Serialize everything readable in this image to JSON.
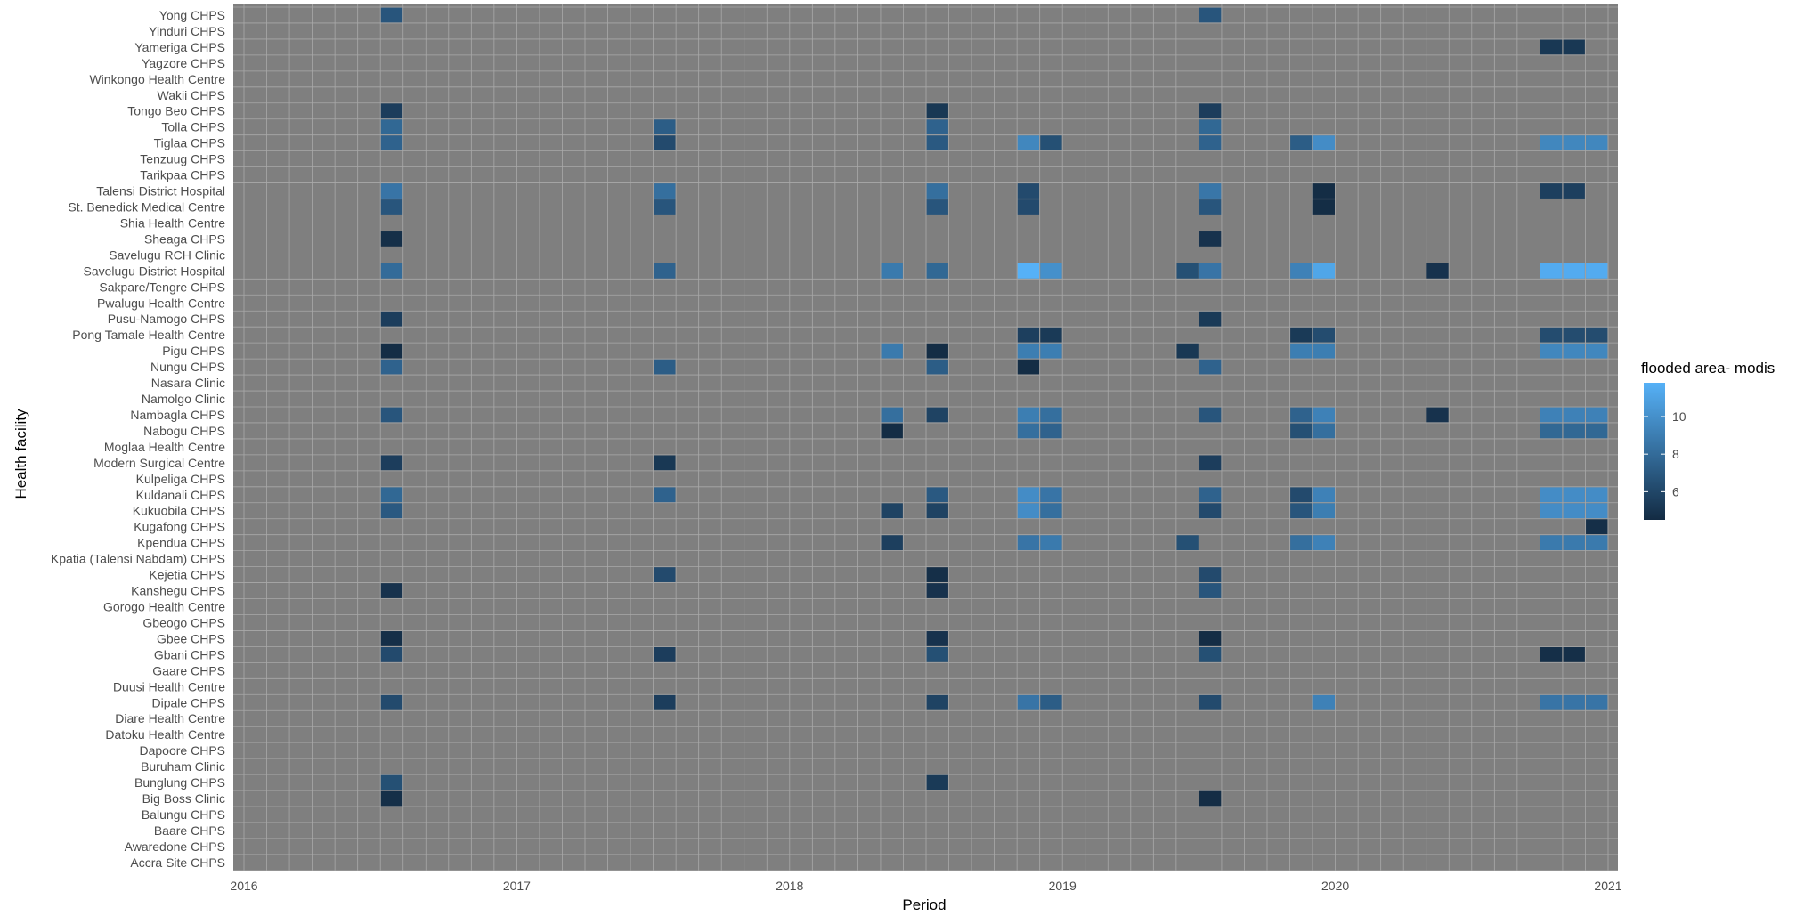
{
  "chart_data": {
    "type": "heatmap",
    "xlabel": "Period",
    "ylabel": "Health facility",
    "xlim": [
      2016.0,
      2021.0
    ],
    "x_ticks": [
      2016,
      2017,
      2018,
      2019,
      2020,
      2021
    ],
    "x_tick_labels": [
      "2016",
      "2017",
      "2018",
      "2019",
      "2020",
      "2021"
    ],
    "legend": {
      "title": "flooded area- modis",
      "ticks": [
        6,
        8,
        10
      ],
      "tick_labels": [
        "6",
        "8",
        "10"
      ],
      "range": [
        4.5,
        11.8
      ],
      "low_color": "#132B43",
      "high_color": "#56B1F7"
    },
    "panel_color": "#7f7f7f",
    "grid_color": "#a9a9a9",
    "facilities": [
      "Yong CHPS",
      "Yinduri CHPS",
      "Yameriga CHPS",
      "Yagzore CHPS",
      "Winkongo Health Centre",
      "Wakii CHPS",
      "Tongo Beo CHPS",
      "Tolla CHPS",
      "Tiglaa CHPS",
      "Tenzuug CHPS",
      "Tarikpaa CHPS",
      "Talensi District Hospital",
      "St. Benedick Medical Centre",
      "Shia Health Centre",
      "Sheaga CHPS",
      "Savelugu RCH Clinic",
      "Savelugu District Hospital",
      "Sakpare/Tengre CHPS",
      "Pwalugu Health Centre",
      "Pusu-Namogo CHPS",
      "Pong Tamale Health Centre",
      "Pigu CHPS",
      "Nungu CHPS",
      "Nasara Clinic",
      "Namolgo Clinic",
      "Nambagla CHPS",
      "Nabogu CHPS",
      "Moglaa Health Centre",
      "Modern Surgical Centre",
      "Kulpeliga CHPS",
      "Kuldanali CHPS",
      "Kukuobila CHPS",
      "Kugafong CHPS",
      "Kpendua CHPS",
      "Kpatia (Talensi Nabdam) CHPS",
      "Kejetia CHPS",
      "Kanshegu CHPS",
      "Gorogo Health Centre",
      "Gbeogo CHPS",
      "Gbee CHPS",
      "Gbani CHPS",
      "Gaare CHPS",
      "Duusi Health Centre",
      "Dipale CHPS",
      "Diare Health Centre",
      "Datoku Health Centre",
      "Dapoore CHPS",
      "Buruham Clinic",
      "Bunglung CHPS",
      "Big Boss Clinic",
      "Balungu CHPS",
      "Baare CHPS",
      "Awaredone CHPS",
      "Accra Site CHPS"
    ],
    "cells": [
      [
        "Yong CHPS",
        "2016-07",
        6.8
      ],
      [
        "Yong CHPS",
        "2019-07",
        6.8
      ],
      [
        "Yameriga CHPS",
        "2020-10",
        5.2
      ],
      [
        "Yameriga CHPS",
        "2020-11",
        5.2
      ],
      [
        "Tongo Beo CHPS",
        "2016-07",
        5.5
      ],
      [
        "Tongo Beo CHPS",
        "2018-07",
        5.2
      ],
      [
        "Tongo Beo CHPS",
        "2019-07",
        5.5
      ],
      [
        "Tolla CHPS",
        "2016-07",
        7.8
      ],
      [
        "Tolla CHPS",
        "2017-07",
        7.2
      ],
      [
        "Tolla CHPS",
        "2018-07",
        7.5
      ],
      [
        "Tolla CHPS",
        "2019-07",
        7.8
      ],
      [
        "Tiglaa CHPS",
        "2016-07",
        7.5
      ],
      [
        "Tiglaa CHPS",
        "2017-07",
        6.2
      ],
      [
        "Tiglaa CHPS",
        "2018-07",
        7.0
      ],
      [
        "Tiglaa CHPS",
        "2018-11",
        9.5
      ],
      [
        "Tiglaa CHPS",
        "2018-12",
        6.5
      ],
      [
        "Tiglaa CHPS",
        "2019-07",
        7.5
      ],
      [
        "Tiglaa CHPS",
        "2019-11",
        7.2
      ],
      [
        "Tiglaa CHPS",
        "2019-12",
        9.8
      ],
      [
        "Tiglaa CHPS",
        "2020-10",
        9.5
      ],
      [
        "Tiglaa CHPS",
        "2020-11",
        9.5
      ],
      [
        "Tiglaa CHPS",
        "2020-12",
        9.5
      ],
      [
        "Talensi District Hospital",
        "2016-07",
        8.5
      ],
      [
        "Talensi District Hospital",
        "2017-07",
        8.2
      ],
      [
        "Talensi District Hospital",
        "2018-07",
        8.2
      ],
      [
        "Talensi District Hospital",
        "2018-11",
        6.2
      ],
      [
        "Talensi District Hospital",
        "2019-07",
        8.6
      ],
      [
        "Talensi District Hospital",
        "2019-12",
        4.6
      ],
      [
        "Talensi District Hospital",
        "2020-10",
        5.6
      ],
      [
        "Talensi District Hospital",
        "2020-11",
        5.6
      ],
      [
        "St. Benedick Medical Centre",
        "2016-07",
        6.8
      ],
      [
        "St. Benedick Medical Centre",
        "2017-07",
        6.8
      ],
      [
        "St. Benedick Medical Centre",
        "2018-07",
        6.8
      ],
      [
        "St. Benedick Medical Centre",
        "2018-11",
        6.2
      ],
      [
        "St. Benedick Medical Centre",
        "2019-07",
        6.8
      ],
      [
        "St. Benedick Medical Centre",
        "2019-12",
        4.6
      ],
      [
        "Sheaga CHPS",
        "2016-07",
        4.7
      ],
      [
        "Sheaga CHPS",
        "2019-07",
        4.9
      ],
      [
        "Savelugu District Hospital",
        "2016-07",
        8.0
      ],
      [
        "Savelugu District Hospital",
        "2017-07",
        7.5
      ],
      [
        "Savelugu District Hospital",
        "2018-05",
        8.8
      ],
      [
        "Savelugu District Hospital",
        "2018-07",
        7.8
      ],
      [
        "Savelugu District Hospital",
        "2018-11",
        11.8
      ],
      [
        "Savelugu District Hospital",
        "2018-12",
        10.0
      ],
      [
        "Savelugu District Hospital",
        "2019-06",
        6.5
      ],
      [
        "Savelugu District Hospital",
        "2019-07",
        8.5
      ],
      [
        "Savelugu District Hospital",
        "2019-11",
        9.2
      ],
      [
        "Savelugu District Hospital",
        "2019-12",
        11.2
      ],
      [
        "Savelugu District Hospital",
        "2020-05",
        4.9
      ],
      [
        "Savelugu District Hospital",
        "2020-10",
        11.5
      ],
      [
        "Savelugu District Hospital",
        "2020-11",
        11.5
      ],
      [
        "Savelugu District Hospital",
        "2020-12",
        11.5
      ],
      [
        "Pusu-Namogo CHPS",
        "2016-07",
        5.5
      ],
      [
        "Pusu-Namogo CHPS",
        "2019-07",
        5.3
      ],
      [
        "Pong Tamale Health Centre",
        "2018-11",
        5.6
      ],
      [
        "Pong Tamale Health Centre",
        "2018-12",
        5.3
      ],
      [
        "Pong Tamale Health Centre",
        "2019-11",
        5.3
      ],
      [
        "Pong Tamale Health Centre",
        "2019-12",
        6.3
      ],
      [
        "Pong Tamale Health Centre",
        "2020-10",
        6.3
      ],
      [
        "Pong Tamale Health Centre",
        "2020-11",
        6.3
      ],
      [
        "Pong Tamale Health Centre",
        "2020-12",
        6.3
      ],
      [
        "Pigu CHPS",
        "2016-07",
        4.6
      ],
      [
        "Pigu CHPS",
        "2018-05",
        8.8
      ],
      [
        "Pigu CHPS",
        "2018-07",
        4.6
      ],
      [
        "Pigu CHPS",
        "2018-11",
        9.0
      ],
      [
        "Pigu CHPS",
        "2018-12",
        9.0
      ],
      [
        "Pigu CHPS",
        "2019-06",
        5.2
      ],
      [
        "Pigu CHPS",
        "2019-11",
        9.0
      ],
      [
        "Pigu CHPS",
        "2019-12",
        9.0
      ],
      [
        "Pigu CHPS",
        "2020-10",
        9.5
      ],
      [
        "Pigu CHPS",
        "2020-11",
        9.5
      ],
      [
        "Pigu CHPS",
        "2020-12",
        9.5
      ],
      [
        "Nungu CHPS",
        "2016-07",
        7.5
      ],
      [
        "Nungu CHPS",
        "2017-07",
        7.2
      ],
      [
        "Nungu CHPS",
        "2018-07",
        7.2
      ],
      [
        "Nungu CHPS",
        "2018-11",
        4.6
      ],
      [
        "Nungu CHPS",
        "2019-07",
        7.5
      ],
      [
        "Nambagla CHPS",
        "2016-07",
        6.8
      ],
      [
        "Nambagla CHPS",
        "2018-05",
        8.2
      ],
      [
        "Nambagla CHPS",
        "2018-07",
        5.8
      ],
      [
        "Nambagla CHPS",
        "2018-11",
        9.0
      ],
      [
        "Nambagla CHPS",
        "2018-12",
        8.2
      ],
      [
        "Nambagla CHPS",
        "2019-07",
        6.8
      ],
      [
        "Nambagla CHPS",
        "2019-11",
        7.5
      ],
      [
        "Nambagla CHPS",
        "2019-12",
        9.2
      ],
      [
        "Nambagla CHPS",
        "2020-05",
        4.9
      ],
      [
        "Nambagla CHPS",
        "2020-10",
        9.2
      ],
      [
        "Nambagla CHPS",
        "2020-11",
        9.2
      ],
      [
        "Nambagla CHPS",
        "2020-12",
        9.2
      ],
      [
        "Nabogu CHPS",
        "2018-05",
        4.6
      ],
      [
        "Nabogu CHPS",
        "2018-11",
        8.2
      ],
      [
        "Nabogu CHPS",
        "2018-12",
        7.5
      ],
      [
        "Nabogu CHPS",
        "2019-11",
        6.5
      ],
      [
        "Nabogu CHPS",
        "2019-12",
        8.2
      ],
      [
        "Nabogu CHPS",
        "2020-10",
        7.8
      ],
      [
        "Nabogu CHPS",
        "2020-11",
        7.8
      ],
      [
        "Nabogu CHPS",
        "2020-12",
        7.8
      ],
      [
        "Modern Surgical Centre",
        "2016-07",
        5.5
      ],
      [
        "Modern Surgical Centre",
        "2017-07",
        5.2
      ],
      [
        "Modern Surgical Centre",
        "2019-07",
        5.5
      ],
      [
        "Kuldanali CHPS",
        "2016-07",
        7.8
      ],
      [
        "Kuldanali CHPS",
        "2017-07",
        7.5
      ],
      [
        "Kuldanali CHPS",
        "2018-07",
        7.0
      ],
      [
        "Kuldanali CHPS",
        "2018-11",
        9.8
      ],
      [
        "Kuldanali CHPS",
        "2018-12",
        8.5
      ],
      [
        "Kuldanali CHPS",
        "2019-07",
        7.5
      ],
      [
        "Kuldanali CHPS",
        "2019-11",
        6.2
      ],
      [
        "Kuldanali CHPS",
        "2019-12",
        9.2
      ],
      [
        "Kuldanali CHPS",
        "2020-10",
        9.8
      ],
      [
        "Kuldanali CHPS",
        "2020-11",
        9.8
      ],
      [
        "Kuldanali CHPS",
        "2020-12",
        9.8
      ],
      [
        "Kukuobila CHPS",
        "2016-07",
        7.0
      ],
      [
        "Kukuobila CHPS",
        "2018-05",
        5.8
      ],
      [
        "Kukuobila CHPS",
        "2018-07",
        5.8
      ],
      [
        "Kukuobila CHPS",
        "2018-11",
        9.8
      ],
      [
        "Kukuobila CHPS",
        "2018-12",
        8.2
      ],
      [
        "Kukuobila CHPS",
        "2019-07",
        6.2
      ],
      [
        "Kukuobila CHPS",
        "2019-11",
        6.8
      ],
      [
        "Kukuobila CHPS",
        "2019-12",
        9.0
      ],
      [
        "Kukuobila CHPS",
        "2020-10",
        9.8
      ],
      [
        "Kukuobila CHPS",
        "2020-11",
        9.8
      ],
      [
        "Kukuobila CHPS",
        "2020-12",
        9.8
      ],
      [
        "Kugafong CHPS",
        "2020-12",
        4.7
      ],
      [
        "Kpendua CHPS",
        "2018-05",
        5.6
      ],
      [
        "Kpendua CHPS",
        "2018-11",
        8.5
      ],
      [
        "Kpendua CHPS",
        "2018-12",
        8.8
      ],
      [
        "Kpendua CHPS",
        "2019-06",
        6.5
      ],
      [
        "Kpendua CHPS",
        "2019-11",
        8.2
      ],
      [
        "Kpendua CHPS",
        "2019-12",
        9.2
      ],
      [
        "Kpendua CHPS",
        "2020-10",
        8.8
      ],
      [
        "Kpendua CHPS",
        "2020-11",
        8.8
      ],
      [
        "Kpendua CHPS",
        "2020-12",
        8.8
      ],
      [
        "Kejetia CHPS",
        "2017-07",
        6.2
      ],
      [
        "Kejetia CHPS",
        "2018-07",
        4.7
      ],
      [
        "Kejetia CHPS",
        "2019-07",
        6.2
      ],
      [
        "Kanshegu CHPS",
        "2016-07",
        4.9
      ],
      [
        "Kanshegu CHPS",
        "2018-07",
        4.9
      ],
      [
        "Kanshegu CHPS",
        "2019-07",
        6.8
      ],
      [
        "Gbee CHPS",
        "2016-07",
        4.7
      ],
      [
        "Gbee CHPS",
        "2018-07",
        4.9
      ],
      [
        "Gbee CHPS",
        "2019-07",
        4.6
      ],
      [
        "Gbani CHPS",
        "2016-07",
        6.2
      ],
      [
        "Gbani CHPS",
        "2017-07",
        5.5
      ],
      [
        "Gbani CHPS",
        "2018-07",
        6.5
      ],
      [
        "Gbani CHPS",
        "2019-07",
        6.5
      ],
      [
        "Gbani CHPS",
        "2020-10",
        4.7
      ],
      [
        "Gbani CHPS",
        "2020-11",
        4.7
      ],
      [
        "Dipale CHPS",
        "2016-07",
        6.2
      ],
      [
        "Dipale CHPS",
        "2017-07",
        5.5
      ],
      [
        "Dipale CHPS",
        "2018-07",
        5.8
      ],
      [
        "Dipale CHPS",
        "2018-11",
        8.5
      ],
      [
        "Dipale CHPS",
        "2018-12",
        7.2
      ],
      [
        "Dipale CHPS",
        "2019-07",
        6.2
      ],
      [
        "Dipale CHPS",
        "2019-12",
        9.2
      ],
      [
        "Dipale CHPS",
        "2020-10",
        8.5
      ],
      [
        "Dipale CHPS",
        "2020-11",
        8.5
      ],
      [
        "Dipale CHPS",
        "2020-12",
        8.5
      ],
      [
        "Bunglung CHPS",
        "2016-07",
        6.5
      ],
      [
        "Bunglung CHPS",
        "2018-07",
        5.3
      ],
      [
        "Big Boss Clinic",
        "2016-07",
        4.7
      ],
      [
        "Big Boss Clinic",
        "2019-07",
        4.6
      ]
    ]
  }
}
